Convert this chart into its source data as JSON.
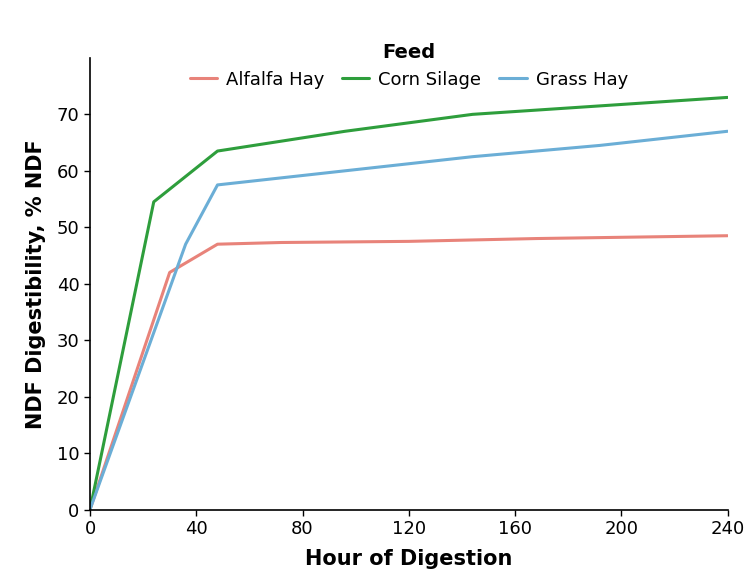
{
  "series": [
    {
      "name": "Alfalfa Hay",
      "color": "#E8837A",
      "x": [
        0,
        30,
        48,
        72,
        120,
        168,
        240
      ],
      "y": [
        0,
        42.0,
        47.0,
        47.3,
        47.5,
        48.0,
        48.5
      ]
    },
    {
      "name": "Corn Silage",
      "color": "#2E9E3C",
      "x": [
        0,
        24,
        48,
        96,
        144,
        192,
        240
      ],
      "y": [
        0,
        54.5,
        63.5,
        67.0,
        70.0,
        71.5,
        73.0
      ]
    },
    {
      "name": "Grass Hay",
      "color": "#6BAED6",
      "x": [
        0,
        36,
        48,
        96,
        144,
        192,
        240
      ],
      "y": [
        0,
        47.0,
        57.5,
        60.0,
        62.5,
        64.5,
        67.0
      ]
    }
  ],
  "xlabel": "Hour of Digestion",
  "ylabel": "NDF Digestibility, % NDF",
  "xlim": [
    0,
    240
  ],
  "ylim": [
    0,
    80
  ],
  "xticks": [
    0,
    40,
    80,
    120,
    160,
    200,
    240
  ],
  "yticks": [
    0,
    10,
    20,
    30,
    40,
    50,
    60,
    70
  ],
  "legend_title": "Feed",
  "line_width": 2.2,
  "background_color": "#FFFFFF",
  "axis_label_fontsize": 15,
  "tick_fontsize": 13,
  "legend_fontsize": 13,
  "legend_title_fontsize": 14
}
